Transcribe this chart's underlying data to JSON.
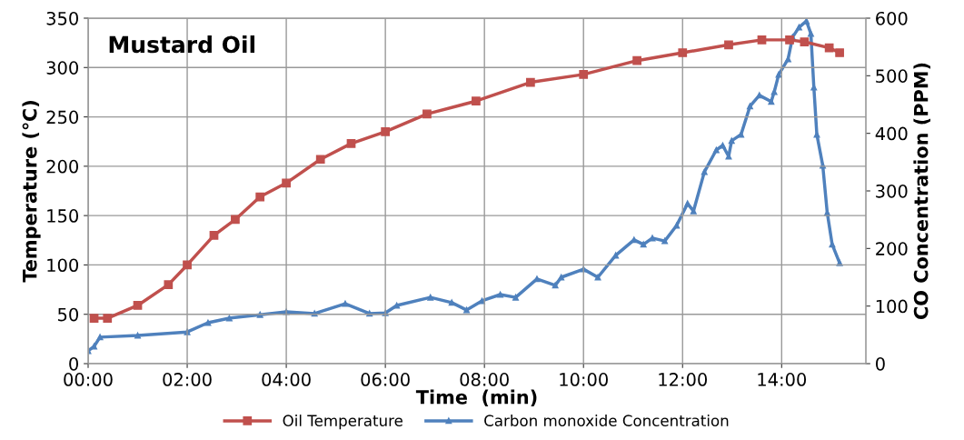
{
  "chart_data": {
    "type": "line",
    "title": "Mustard Oil",
    "xlabel": "Time  (min)",
    "ylabel": "Temperature (℃)",
    "y2label": "CO Concentration (PPM)",
    "xlim": [
      0,
      15.7
    ],
    "xticks": [
      {
        "value": 0,
        "label": "00:00"
      },
      {
        "value": 2,
        "label": "02:00"
      },
      {
        "value": 4,
        "label": "04:00"
      },
      {
        "value": 6,
        "label": "06:00"
      },
      {
        "value": 8,
        "label": "08:00"
      },
      {
        "value": 10,
        "label": "10:00"
      },
      {
        "value": 12,
        "label": "12:00"
      },
      {
        "value": 14,
        "label": "14:00"
      }
    ],
    "ylim": [
      0,
      350
    ],
    "yticks": [
      0,
      50,
      100,
      150,
      200,
      250,
      300,
      350
    ],
    "y2lim": [
      0,
      600
    ],
    "y2ticks": [
      0,
      100,
      200,
      300,
      400,
      500,
      600
    ],
    "grid": true,
    "legend": "bottom",
    "line_style": "solid",
    "series": [
      {
        "name": "Oil Temperature",
        "color": "#c0504d",
        "marker": "square",
        "x": [
          0.12,
          0.39,
          1.0,
          1.62,
          2.0,
          2.54,
          2.97,
          3.47,
          4.0,
          4.69,
          5.31,
          6.0,
          6.84,
          7.83,
          8.93,
          10.0,
          11.08,
          12.0,
          12.93,
          13.6,
          14.16,
          14.46,
          14.96,
          15.17
        ],
        "values": [
          46,
          46,
          59,
          80,
          100,
          130,
          146,
          169,
          183,
          207,
          223,
          235,
          253,
          266,
          285,
          293,
          307,
          315,
          323,
          328,
          328,
          326,
          320,
          315
        ]
      },
      {
        "name": "Carbon monoxide Concentration",
        "color": "#4f81bd",
        "marker": "triangle",
        "axis": "y2",
        "x": [
          0,
          0.12,
          0.24,
          1.0,
          2.0,
          2.42,
          2.85,
          3.47,
          4.0,
          4.57,
          5.19,
          5.68,
          6.0,
          6.23,
          6.91,
          7.34,
          7.64,
          7.95,
          8.32,
          8.63,
          9.06,
          9.43,
          9.55,
          10.0,
          10.29,
          10.65,
          11.02,
          11.21,
          11.39,
          11.64,
          11.88,
          12.1,
          12.22,
          12.44,
          12.68,
          12.81,
          12.93,
          12.99,
          13.18,
          13.36,
          13.55,
          13.79,
          13.85,
          13.94,
          14.13,
          14.22,
          14.35,
          14.5,
          14.59,
          14.65,
          14.71,
          14.83,
          14.92,
          15.02,
          15.17
        ],
        "values": [
          22,
          30,
          46,
          49,
          55,
          71,
          79,
          85,
          90,
          87,
          104,
          87,
          88,
          101,
          115,
          106,
          93,
          109,
          120,
          115,
          147,
          136,
          150,
          164,
          150,
          188,
          215,
          207,
          218,
          213,
          240,
          278,
          265,
          333,
          371,
          379,
          360,
          387,
          398,
          447,
          466,
          455,
          472,
          502,
          529,
          567,
          584,
          595,
          573,
          480,
          398,
          344,
          262,
          207,
          175
        ]
      }
    ]
  }
}
